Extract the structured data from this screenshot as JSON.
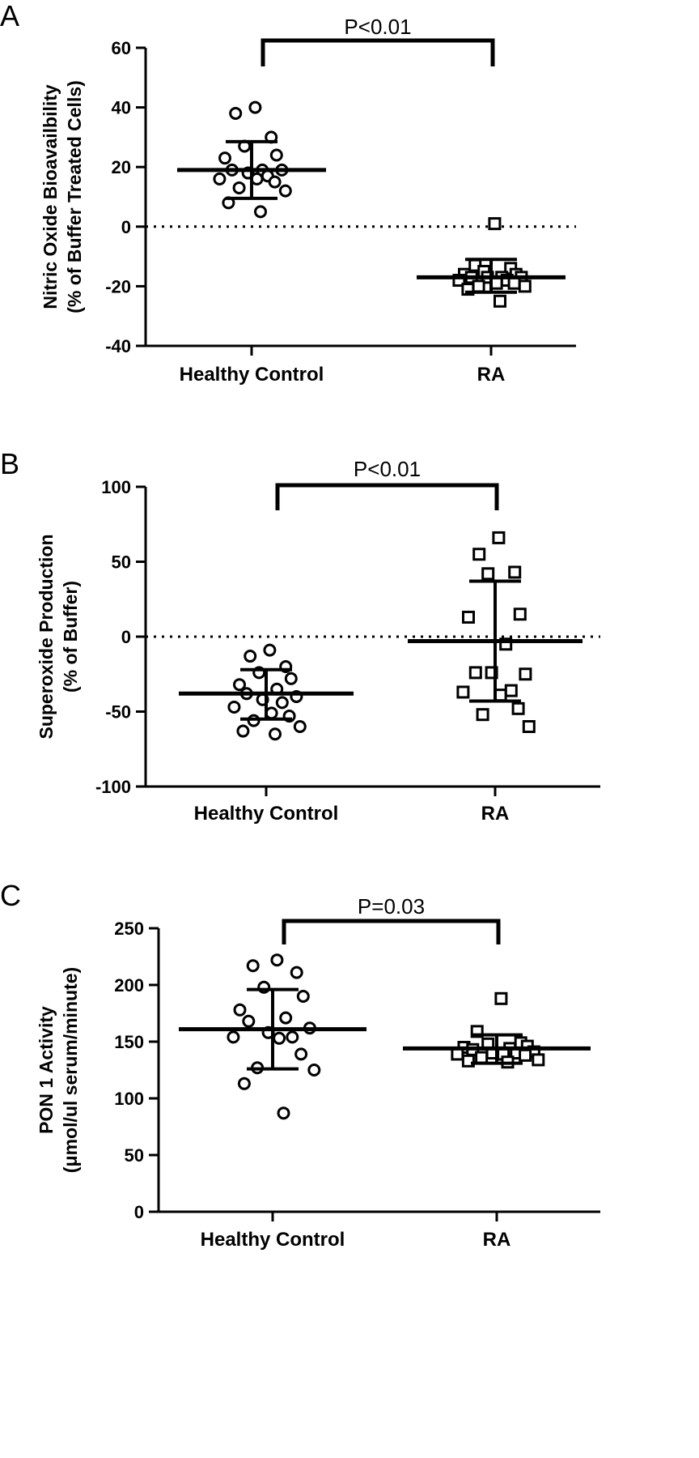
{
  "chart_data": [
    {
      "type": "scatter",
      "panel_label": "A",
      "ylabel_line1": "Nitric Oxide Bioavailbility",
      "ylabel_line2": "(% of Buffer Treated Cells)",
      "ylim": [
        -40,
        60
      ],
      "yticks": [
        "60",
        "40",
        "20",
        "0",
        "-20",
        "-40"
      ],
      "reference_line": 0,
      "categories": [
        "Healthy Control",
        "RA"
      ],
      "significance": "P<0.01",
      "groups": [
        {
          "category": "Healthy Control",
          "marker": "circle",
          "mean": 19,
          "sd_upper": 28.5,
          "sd_lower": 9.5,
          "values": [
            40,
            38,
            30,
            27,
            24,
            23,
            19,
            19,
            19,
            18,
            17,
            16,
            16,
            15,
            13,
            12,
            8,
            5
          ]
        },
        {
          "category": "RA",
          "marker": "square",
          "mean": -17,
          "sd_upper": -11,
          "sd_lower": -22,
          "values": [
            1,
            -13,
            -14,
            -15,
            -16,
            -16,
            -17,
            -17,
            -17,
            -17,
            -18,
            -18,
            -19,
            -19,
            -20,
            -20,
            -21,
            -25
          ]
        }
      ]
    },
    {
      "type": "scatter",
      "panel_label": "B",
      "ylabel_line1": "Superoxide Production",
      "ylabel_line2": "(% of Buffer)",
      "ylim": [
        -100,
        100
      ],
      "yticks": [
        "100",
        "50",
        "0",
        "-50",
        "-100"
      ],
      "reference_line": 0,
      "categories": [
        "Healthy Control",
        "RA"
      ],
      "significance": "P<0.01",
      "groups": [
        {
          "category": "Healthy Control",
          "marker": "circle",
          "mean": -38,
          "sd_upper": -22,
          "sd_lower": -55,
          "values": [
            -9,
            -13,
            -20,
            -24,
            -28,
            -32,
            -35,
            -38,
            -40,
            -42,
            -44,
            -47,
            -51,
            -53,
            -56,
            -60,
            -63,
            -65
          ]
        },
        {
          "category": "RA",
          "marker": "square",
          "mean": -3,
          "sd_upper": 37,
          "sd_lower": -43,
          "values": [
            66,
            55,
            43,
            42,
            15,
            13,
            -5,
            -24,
            -25,
            -24,
            -36,
            -37,
            -39,
            -48,
            -52,
            -60
          ]
        }
      ]
    },
    {
      "type": "scatter",
      "panel_label": "C",
      "ylabel_line1": "PON 1  Activity",
      "ylabel_line2": "(μmol/ul serum/minute)",
      "ylim": [
        0,
        250
      ],
      "yticks": [
        "250",
        "200",
        "150",
        "100",
        "50",
        "0"
      ],
      "categories": [
        "Healthy Control",
        "RA"
      ],
      "significance": "P=0.03",
      "groups": [
        {
          "category": "Healthy Control",
          "marker": "circle",
          "mean": 161,
          "sd_upper": 196,
          "sd_lower": 126,
          "values": [
            222,
            217,
            211,
            198,
            190,
            178,
            171,
            168,
            162,
            158,
            154,
            154,
            153,
            139,
            127,
            125,
            113,
            87
          ]
        },
        {
          "category": "RA",
          "marker": "square",
          "mean": 144,
          "sd_upper": 156,
          "sd_lower": 131,
          "values": [
            188,
            159,
            149,
            148,
            146,
            145,
            144,
            143,
            141,
            140,
            140,
            139,
            139,
            138,
            136,
            134,
            133,
            132
          ]
        }
      ]
    }
  ]
}
